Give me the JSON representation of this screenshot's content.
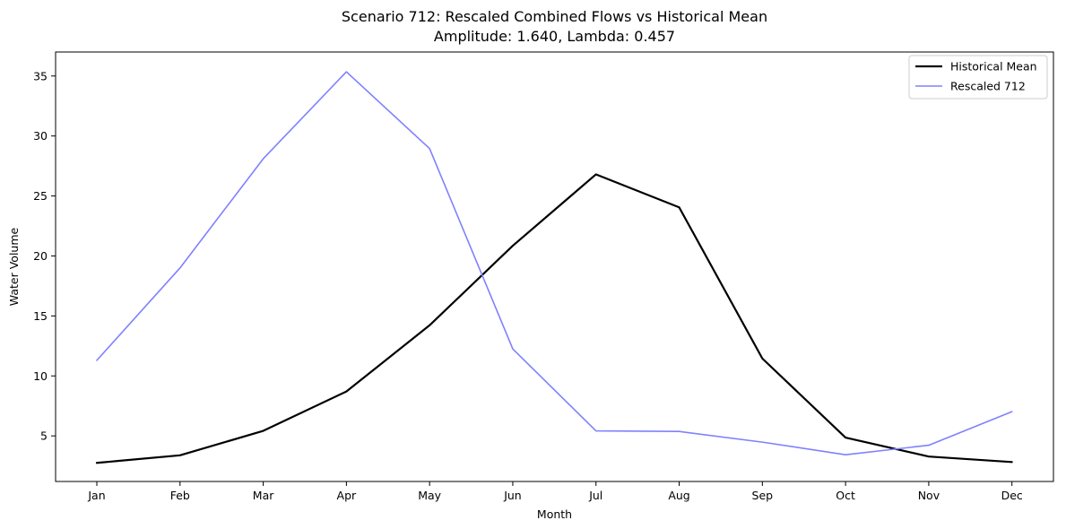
{
  "chart_data": {
    "type": "line",
    "title": "Scenario 712: Rescaled Combined Flows vs Historical Mean",
    "subtitle": "Amplitude: 1.640, Lambda: 0.457",
    "xlabel": "Month",
    "ylabel": "Water Volume",
    "categories": [
      "Jan",
      "Feb",
      "Mar",
      "Apr",
      "May",
      "Jun",
      "Jul",
      "Aug",
      "Sep",
      "Oct",
      "Nov",
      "Dec"
    ],
    "ylim": [
      1.2,
      37.0
    ],
    "yticks": [
      5,
      10,
      15,
      20,
      25,
      30,
      35
    ],
    "grid": false,
    "legend_position": "top-right",
    "series": [
      {
        "name": "Historical Mean",
        "color": "#000000",
        "values": [
          2.75,
          3.38,
          5.42,
          8.7,
          14.22,
          20.85,
          26.8,
          24.05,
          11.45,
          4.86,
          3.28,
          2.82
        ]
      },
      {
        "name": "Rescaled 712",
        "color": "#8080ff",
        "values": [
          11.3,
          19.0,
          28.1,
          35.35,
          28.95,
          12.25,
          5.42,
          5.37,
          4.48,
          3.43,
          4.22,
          7.02
        ]
      }
    ]
  }
}
